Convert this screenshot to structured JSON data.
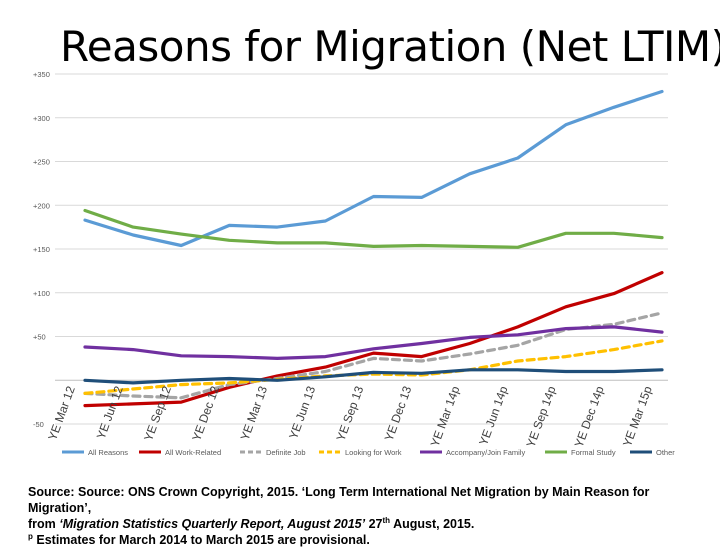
{
  "title": "Reasons for Migration (Net LTIM)",
  "chart_data": {
    "type": "line",
    "title": "Reasons for Migration (Net LTIM)",
    "xlabel": "",
    "ylabel": "",
    "ylim": [
      -50,
      350
    ],
    "grid": true,
    "legend_position": "bottom",
    "y_ticks": [
      "-50",
      "",
      "+50",
      "+100",
      "+150",
      "+200",
      "+250",
      "+300",
      "+350"
    ],
    "y_tick_values": [
      -50,
      0,
      50,
      100,
      150,
      200,
      250,
      300,
      350
    ],
    "categories": [
      "YE Mar 12",
      "YE Jun 12",
      "YE Sep 12",
      "YE Dec 12",
      "YE Mar 13",
      "YE Jun 13",
      "YE Sep 13",
      "YE Dec 13",
      "YE Mar 14p",
      "YE Jun 14p",
      "YE Sep 14p",
      "YE Dec 14p",
      "YE Mar 15p"
    ],
    "series": [
      {
        "name": "All Reasons",
        "color": "#5b9bd5",
        "dash": "",
        "values": [
          183,
          166,
          154,
          177,
          175,
          182,
          210,
          209,
          236,
          254,
          292,
          312,
          330
        ]
      },
      {
        "name": "All Work-Related",
        "color": "#c00000",
        "dash": "",
        "values": [
          -29,
          -27,
          -25,
          -8,
          5,
          15,
          31,
          27,
          42,
          61,
          84,
          99,
          123
        ]
      },
      {
        "name": "Definite Job",
        "color": "#a5a5a5",
        "dash": "7,5",
        "values": [
          -15,
          -18,
          -20,
          -5,
          2,
          10,
          25,
          22,
          30,
          40,
          58,
          64,
          77
        ]
      },
      {
        "name": "Looking for Work",
        "color": "#ffc000",
        "dash": "7,5",
        "values": [
          -15,
          -10,
          -5,
          -3,
          1,
          5,
          7,
          6,
          12,
          22,
          27,
          35,
          45
        ]
      },
      {
        "name": "Accompany/Join Family",
        "color": "#7030a0",
        "dash": "",
        "values": [
          38,
          35,
          28,
          27,
          25,
          27,
          36,
          42,
          49,
          52,
          59,
          61,
          55
        ]
      },
      {
        "name": "Formal Study",
        "color": "#70ad47",
        "dash": "",
        "values": [
          194,
          175,
          167,
          160,
          157,
          157,
          153,
          154,
          153,
          152,
          168,
          168,
          163
        ]
      },
      {
        "name": "Other",
        "color": "#1f4e79",
        "dash": "",
        "values": [
          0,
          -3,
          0,
          2,
          0,
          4,
          9,
          8,
          12,
          12,
          10,
          10,
          12
        ]
      }
    ]
  },
  "source": {
    "line1": "Source: Source: ONS Crown Copyright, 2015. ‘Long Term International  Net Migration by Main Reason for Migration’,",
    "line2_a": "from ",
    "line2_b": "‘Migration Statistics Quarterly Report, August 2015’",
    "line2_c": " 27",
    "line2_sup": "th",
    "line2_d": " August, 2015.",
    "line3_sup": "p",
    "line3": " Estimates for March 2014 to March 2015 are provisional."
  }
}
